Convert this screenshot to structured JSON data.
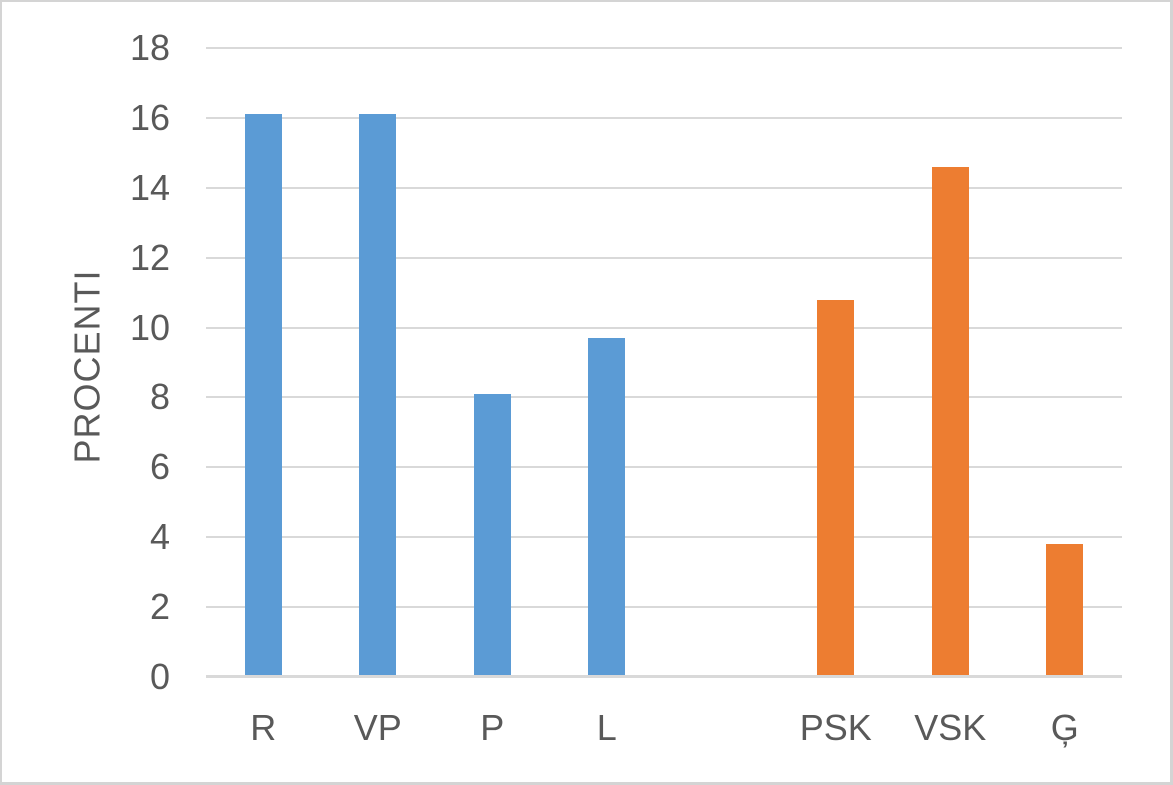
{
  "chart_data": {
    "type": "bar",
    "title": "",
    "xlabel": "",
    "ylabel": "PROCENTI",
    "ylim": [
      0,
      18
    ],
    "yticks": [
      0,
      2,
      4,
      6,
      8,
      10,
      12,
      14,
      16,
      18
    ],
    "grid": "horizontal",
    "legend": "none",
    "categories": [
      "R",
      "VP",
      "P",
      "L",
      "",
      "PSK",
      "VSK",
      "Ģ"
    ],
    "series": [
      {
        "name": "blue-series",
        "color": "#5B9BD5",
        "values": [
          16.1,
          16.1,
          8.1,
          9.7,
          null,
          null,
          null,
          null
        ]
      },
      {
        "name": "orange-series",
        "color": "#ED7D31",
        "values": [
          null,
          null,
          null,
          null,
          null,
          10.8,
          14.6,
          3.8
        ]
      }
    ]
  },
  "colors": {
    "axis_text": "#595959",
    "gridline": "#D9D9D9",
    "axis_line": "#D9D9D9",
    "background": "#FFFFFF",
    "frame_border": "#D4D4D4"
  }
}
